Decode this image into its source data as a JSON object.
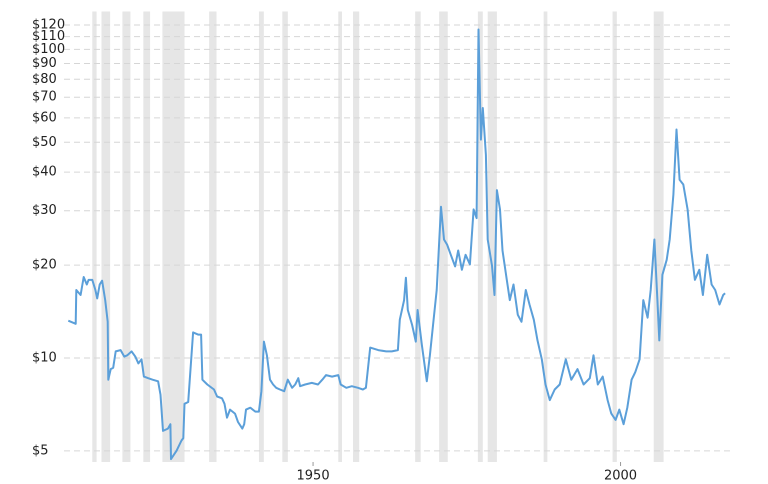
{
  "chart_data": {
    "type": "line",
    "log_scale": true,
    "grid": true,
    "xlim": [
      1909.5,
      2017.8
    ],
    "xticks": [
      1950,
      2000
    ],
    "ylim": [
      4.6,
      125
    ],
    "yticks": [
      {
        "value": 5,
        "label": "$5"
      },
      {
        "value": 10,
        "label": "$10"
      },
      {
        "value": 20,
        "label": "$20"
      },
      {
        "value": 30,
        "label": "$30"
      },
      {
        "value": 40,
        "label": "$40"
      },
      {
        "value": 50,
        "label": "$50"
      },
      {
        "value": 60,
        "label": "$60"
      },
      {
        "value": 70,
        "label": "$70"
      },
      {
        "value": 80,
        "label": "$80"
      },
      {
        "value": 90,
        "label": "$90"
      },
      {
        "value": 100,
        "label": "$100"
      },
      {
        "value": 110,
        "label": "$110"
      },
      {
        "value": 120,
        "label": "$120"
      }
    ],
    "recession_bands": [
      [
        1914.1,
        1914.8
      ],
      [
        1915.6,
        1917.0
      ],
      [
        1919.0,
        1920.3
      ],
      [
        1922.4,
        1923.5
      ],
      [
        1925.5,
        1929.1
      ],
      [
        1933.1,
        1934.3
      ],
      [
        1941.2,
        1942.0
      ],
      [
        1945.0,
        1945.9
      ],
      [
        1954.1,
        1954.7
      ],
      [
        1956.5,
        1957.5
      ],
      [
        1966.6,
        1967.5
      ],
      [
        1970.5,
        1971.9
      ],
      [
        1976.8,
        1977.6
      ],
      [
        1978.4,
        1979.9
      ],
      [
        1987.5,
        1988.1
      ],
      [
        1998.7,
        1999.4
      ],
      [
        2005.4,
        2007.0
      ]
    ],
    "band_color": "#e6e6e6",
    "color": "#5b9fd9",
    "x": [
      1910.2,
      1911.4,
      1911.5,
      1912.2,
      1912.7,
      1913.2,
      1913.5,
      1914.1,
      1914.6,
      1914.9,
      1915.3,
      1915.7,
      1916.2,
      1916.6,
      1916.7,
      1917.1,
      1917.5,
      1917.9,
      1918.7,
      1919.3,
      1919.8,
      1920.5,
      1921.1,
      1921.6,
      1922.1,
      1922.5,
      1923.2,
      1923.9,
      1924.8,
      1925.2,
      1925.6,
      1926.4,
      1926.8,
      1926.9,
      1927.8,
      1928.6,
      1928.9,
      1929.1,
      1929.7,
      1930.5,
      1931.3,
      1931.8,
      1932.0,
      1932.8,
      1933.9,
      1934.4,
      1935.2,
      1935.6,
      1936.0,
      1936.5,
      1937.3,
      1937.8,
      1938.5,
      1938.8,
      1939.1,
      1939.8,
      1940.6,
      1941.2,
      1941.6,
      1942.0,
      1942.5,
      1943.0,
      1943.5,
      1944.0,
      1944.6,
      1945.3,
      1945.9,
      1946.6,
      1947.1,
      1947.6,
      1947.9,
      1948.7,
      1949.8,
      1950.8,
      1951.5,
      1952.1,
      1953.1,
      1954.1,
      1954.5,
      1955.4,
      1956.3,
      1957.3,
      1958.1,
      1958.6,
      1959.3,
      1960.6,
      1961.9,
      1962.8,
      1963.8,
      1964.1,
      1964.8,
      1965.1,
      1965.4,
      1966.1,
      1966.7,
      1967.0,
      1967.7,
      1968.5,
      1969.0,
      1969.6,
      1970.1,
      1970.8,
      1971.3,
      1971.8,
      1972.4,
      1973.1,
      1973.6,
      1974.2,
      1974.8,
      1975.5,
      1976.1,
      1976.6,
      1976.9,
      1977.3,
      1977.6,
      1978.1,
      1978.4,
      1979.1,
      1979.5,
      1979.9,
      1980.4,
      1980.8,
      1981.5,
      1982.0,
      1982.6,
      1983.3,
      1983.9,
      1984.6,
      1985.2,
      1985.9,
      1986.5,
      1987.2,
      1987.8,
      1988.5,
      1989.3,
      1990.1,
      1991.1,
      1992.0,
      1993.0,
      1994.0,
      1995.0,
      1995.6,
      1996.3,
      1997.1,
      1997.9,
      1998.5,
      1999.2,
      1999.8,
      2000.5,
      2001.1,
      2001.8,
      2002.4,
      2003.1,
      2003.7,
      2004.4,
      2004.9,
      2005.5,
      2006.0,
      2006.3,
      2006.8,
      2007.5,
      2008.0,
      2008.6,
      2009.1,
      2009.6,
      2010.2,
      2010.9,
      2011.5,
      2012.1,
      2012.8,
      2013.4,
      2014.1,
      2014.8,
      2015.4,
      2016.1,
      2016.7,
      2017.0
    ],
    "values": [
      13.2,
      12.9,
      16.6,
      16.0,
      18.3,
      17.3,
      17.9,
      17.9,
      16.6,
      15.6,
      17.3,
      17.8,
      15.4,
      13.1,
      8.5,
      9.2,
      9.3,
      10.5,
      10.6,
      10.1,
      10.2,
      10.5,
      10.1,
      9.6,
      9.9,
      8.7,
      8.6,
      8.5,
      8.4,
      7.6,
      5.8,
      5.9,
      6.1,
      4.7,
      5.0,
      5.4,
      5.5,
      7.1,
      7.2,
      12.1,
      11.9,
      11.9,
      8.5,
      8.2,
      7.9,
      7.5,
      7.4,
      7.1,
      6.4,
      6.8,
      6.6,
      6.2,
      5.9,
      6.1,
      6.8,
      6.9,
      6.7,
      6.7,
      7.8,
      11.3,
      10.2,
      8.5,
      8.2,
      8.0,
      7.9,
      7.8,
      8.5,
      8.0,
      8.2,
      8.6,
      8.1,
      8.2,
      8.3,
      8.2,
      8.5,
      8.8,
      8.7,
      8.8,
      8.2,
      8.0,
      8.1,
      8.0,
      7.9,
      8.0,
      10.8,
      10.6,
      10.5,
      10.5,
      10.6,
      13.3,
      15.4,
      18.2,
      14.3,
      12.8,
      11.3,
      14.3,
      11.0,
      8.4,
      10.2,
      13.3,
      16.6,
      30.9,
      24.2,
      23.3,
      21.6,
      19.8,
      22.3,
      19.3,
      21.6,
      20.1,
      30.3,
      28.4,
      116,
      51.0,
      64.6,
      45.5,
      24.2,
      19.9,
      16.0,
      35.0,
      30.3,
      22.3,
      17.9,
      15.4,
      17.3,
      13.8,
      13.1,
      16.6,
      14.9,
      13.3,
      11.4,
      9.9,
      8.2,
      7.3,
      7.9,
      8.2,
      9.9,
      8.5,
      9.2,
      8.2,
      8.6,
      10.2,
      8.2,
      8.7,
      7.3,
      6.6,
      6.3,
      6.8,
      6.1,
      6.9,
      8.5,
      9.0,
      9.9,
      15.4,
      13.5,
      16.6,
      24.2,
      15.4,
      11.4,
      18.6,
      20.8,
      24.2,
      33.9,
      55.0,
      37.8,
      36.5,
      30.3,
      22.3,
      17.9,
      19.3,
      16.0,
      21.6,
      17.3,
      16.6,
      14.9,
      16.0,
      16.2
    ]
  }
}
